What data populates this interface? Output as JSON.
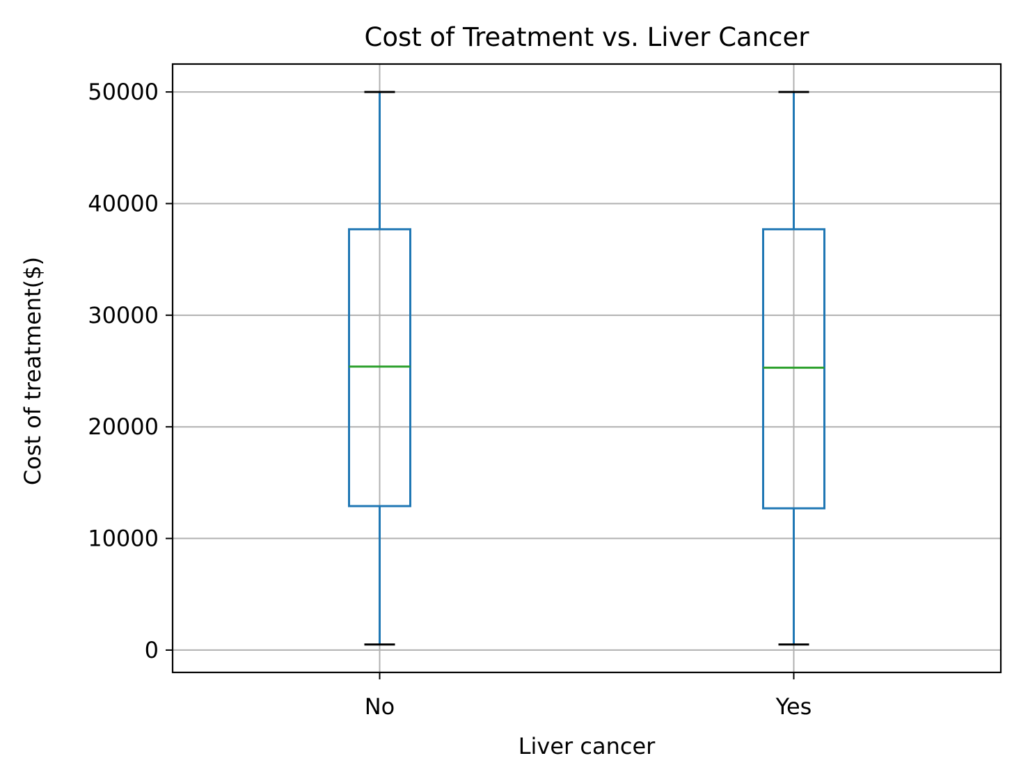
{
  "chart_data": {
    "type": "box",
    "title": "Cost of Treatment vs. Liver Cancer",
    "xlabel": "Liver cancer",
    "ylabel": "Cost of treatment($)",
    "categories": [
      "No",
      "Yes"
    ],
    "boxes": [
      {
        "category": "No",
        "whisker_low": 500,
        "q1": 12900,
        "median": 25400,
        "q3": 37700,
        "whisker_high": 50000
      },
      {
        "category": "Yes",
        "whisker_low": 500,
        "q1": 12700,
        "median": 25300,
        "q3": 37700,
        "whisker_high": 50000
      }
    ],
    "yticks": [
      0,
      10000,
      20000,
      30000,
      40000,
      50000
    ],
    "ytick_labels": [
      "0",
      "10000",
      "20000",
      "30000",
      "40000",
      "50000"
    ],
    "ylim": [
      -2000,
      52500
    ],
    "grid": true,
    "colors": {
      "box": "#1f77b4",
      "median": "#2ca02c",
      "caps": "#000000",
      "grid": "#b0b0b0",
      "axes": "#000000"
    }
  }
}
